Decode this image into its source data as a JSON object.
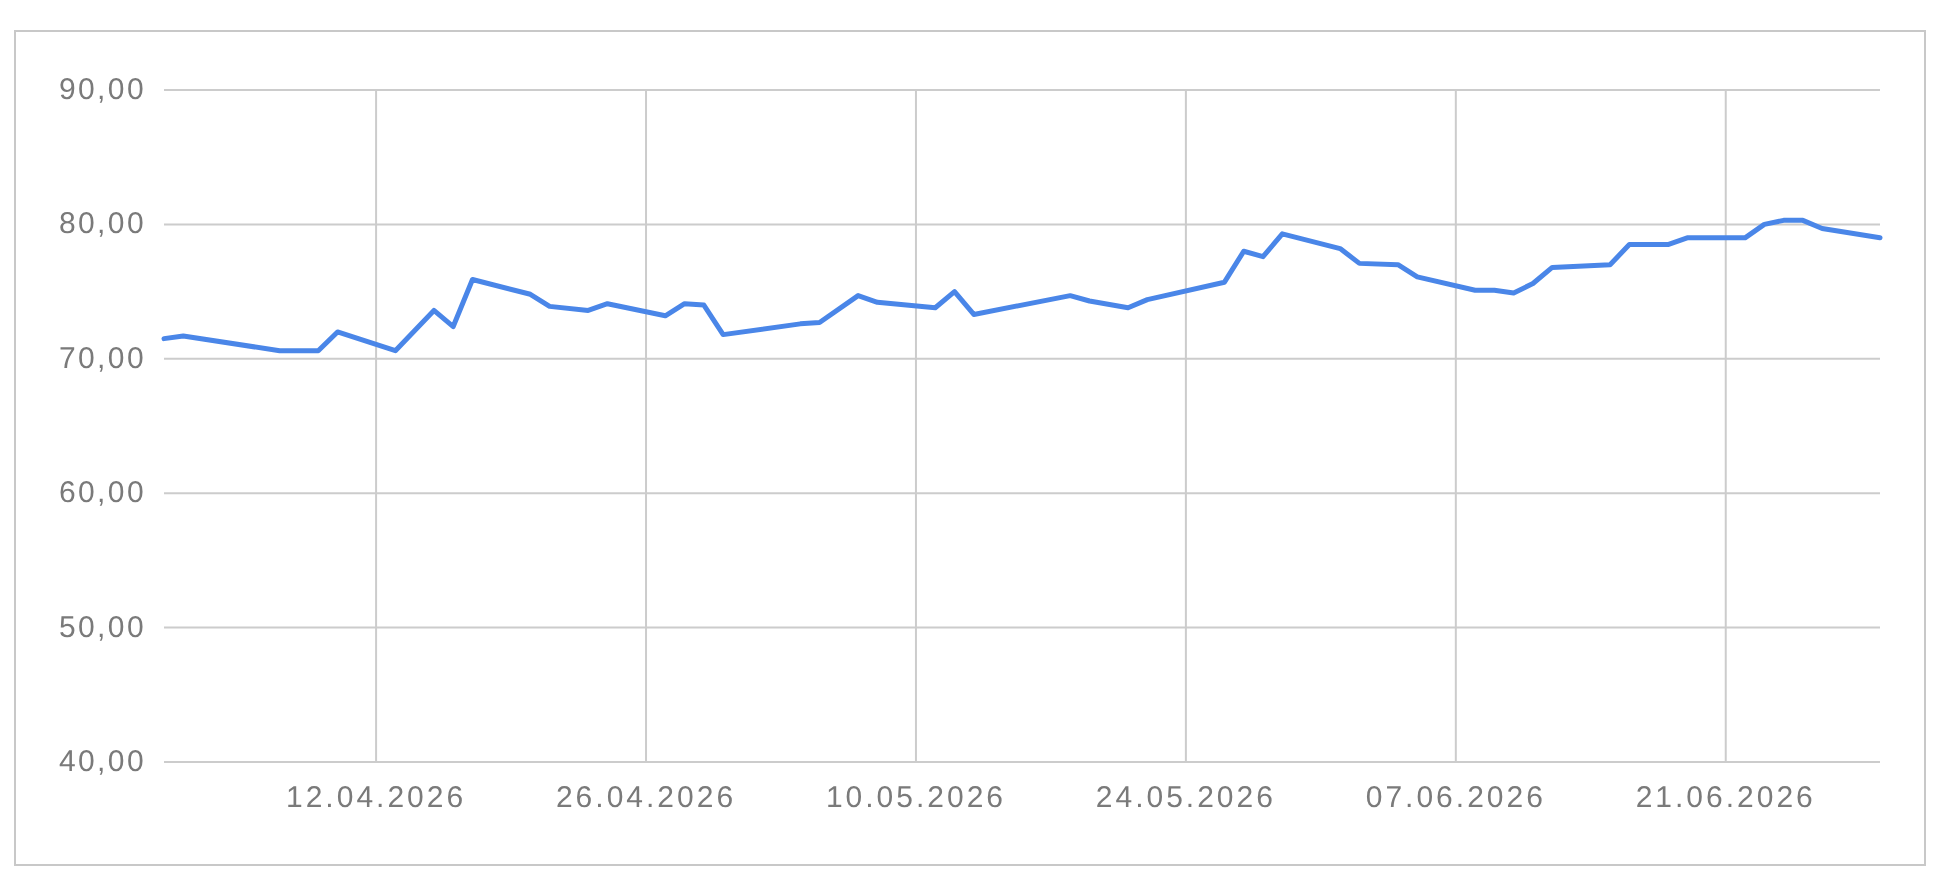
{
  "chart_data": {
    "type": "line",
    "x": [
      "2026-04-01",
      "2026-04-02",
      "2026-04-07",
      "2026-04-09",
      "2026-04-10",
      "2026-04-13",
      "2026-04-15",
      "2026-04-16",
      "2026-04-17",
      "2026-04-20",
      "2026-04-21",
      "2026-04-23",
      "2026-04-24",
      "2026-04-27",
      "2026-04-28",
      "2026-04-29",
      "2026-04-30",
      "2026-05-04",
      "2026-05-05",
      "2026-05-07",
      "2026-05-08",
      "2026-05-11",
      "2026-05-12",
      "2026-05-13",
      "2026-05-18",
      "2026-05-19",
      "2026-05-21",
      "2026-05-22",
      "2026-05-26",
      "2026-05-27",
      "2026-05-28",
      "2026-05-29",
      "2026-06-01",
      "2026-06-02",
      "2026-06-04",
      "2026-06-05",
      "2026-06-08",
      "2026-06-09",
      "2026-06-10",
      "2026-06-11",
      "2026-06-12",
      "2026-06-15",
      "2026-06-16",
      "2026-06-18",
      "2026-06-19",
      "2026-06-22",
      "2026-06-23",
      "2026-06-24",
      "2026-06-25",
      "2026-06-26",
      "2026-06-29"
    ],
    "series": [
      {
        "color": "#4a86e8",
        "values": [
          71.5,
          71.7,
          70.6,
          70.6,
          72.0,
          70.6,
          73.6,
          72.4,
          75.9,
          74.8,
          73.9,
          73.6,
          74.1,
          73.2,
          74.1,
          74.0,
          71.8,
          72.6,
          72.7,
          74.7,
          74.2,
          73.8,
          75.0,
          73.3,
          74.7,
          74.3,
          73.8,
          74.4,
          75.7,
          78.0,
          77.6,
          79.3,
          78.2,
          77.1,
          77.0,
          76.1,
          75.1,
          75.1,
          74.9,
          75.6,
          76.8,
          77.0,
          78.5,
          78.5,
          79.0,
          79.0,
          80.0,
          80.3,
          80.3,
          79.7,
          79.0
        ]
      }
    ],
    "xlim": [
      "2026-04-01",
      "2026-06-29"
    ],
    "xticks": [
      {
        "value": "2026-04-12",
        "label": "12.04.2026"
      },
      {
        "value": "2026-04-26",
        "label": "26.04.2026"
      },
      {
        "value": "2026-05-10",
        "label": "10.05.2026"
      },
      {
        "value": "2026-05-24",
        "label": "24.05.2026"
      },
      {
        "value": "2026-06-07",
        "label": "07.06.2026"
      },
      {
        "value": "2026-06-21",
        "label": "21.06.2026"
      }
    ],
    "ylim": [
      40,
      90
    ],
    "yticks": [
      {
        "value": 40,
        "label": "40,00"
      },
      {
        "value": 50,
        "label": "50,00"
      },
      {
        "value": 60,
        "label": "60,00"
      },
      {
        "value": 70,
        "label": "70,00"
      },
      {
        "value": 80,
        "label": "80,00"
      },
      {
        "value": 90,
        "label": "90,00"
      }
    ],
    "grid": true
  }
}
